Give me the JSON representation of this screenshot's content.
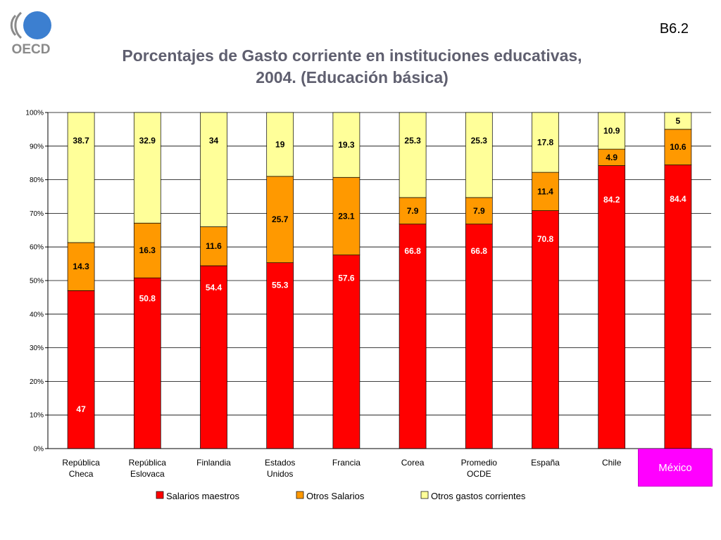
{
  "header": {
    "logo_text": "OECD",
    "slide_code": "B6.2"
  },
  "colors": {
    "salarios_maestros": "#ff0000",
    "otros_salarios": "#ff9900",
    "otros_gastos": "#ffff99",
    "highlight": "#ff00ff",
    "oecd_blue": "#3c7fd0",
    "oecd_grey": "#8a8a8a"
  },
  "chart_data": {
    "type": "bar",
    "stacked": true,
    "title_lines": [
      "Porcentajes de Gasto corriente en instituciones educativas,",
      "2004. (Educación básica)"
    ],
    "categories": [
      [
        "República",
        "Checa"
      ],
      [
        "República",
        "Eslovaca"
      ],
      [
        "Finlandia"
      ],
      [
        "Estados",
        "Unidos"
      ],
      [
        "Francia"
      ],
      [
        "Corea"
      ],
      [
        "Promedio",
        "OCDE"
      ],
      [
        "España"
      ],
      [
        "Chile"
      ],
      [
        "México"
      ]
    ],
    "highlighted_category": "México",
    "yticks": [
      "0%",
      "10%",
      "20%",
      "30%",
      "40%",
      "50%",
      "60%",
      "70%",
      "80%",
      "90%",
      "100%"
    ],
    "ylim": [
      0,
      100
    ],
    "grid": true,
    "legend_position": "bottom",
    "series": [
      {
        "name": "Salarios maestros",
        "values": [
          47,
          50.8,
          54.4,
          55.3,
          57.6,
          66.8,
          66.8,
          70.8,
          84.2,
          84.4
        ]
      },
      {
        "name": "Otros Salarios",
        "values": [
          14.3,
          16.3,
          11.6,
          25.7,
          23.1,
          7.9,
          7.9,
          11.4,
          4.9,
          10.6
        ]
      },
      {
        "name": "Otros gastos corrientes",
        "values": [
          38.7,
          32.9,
          34,
          19,
          19.3,
          25.3,
          25.3,
          17.8,
          10.9,
          5
        ]
      }
    ]
  }
}
